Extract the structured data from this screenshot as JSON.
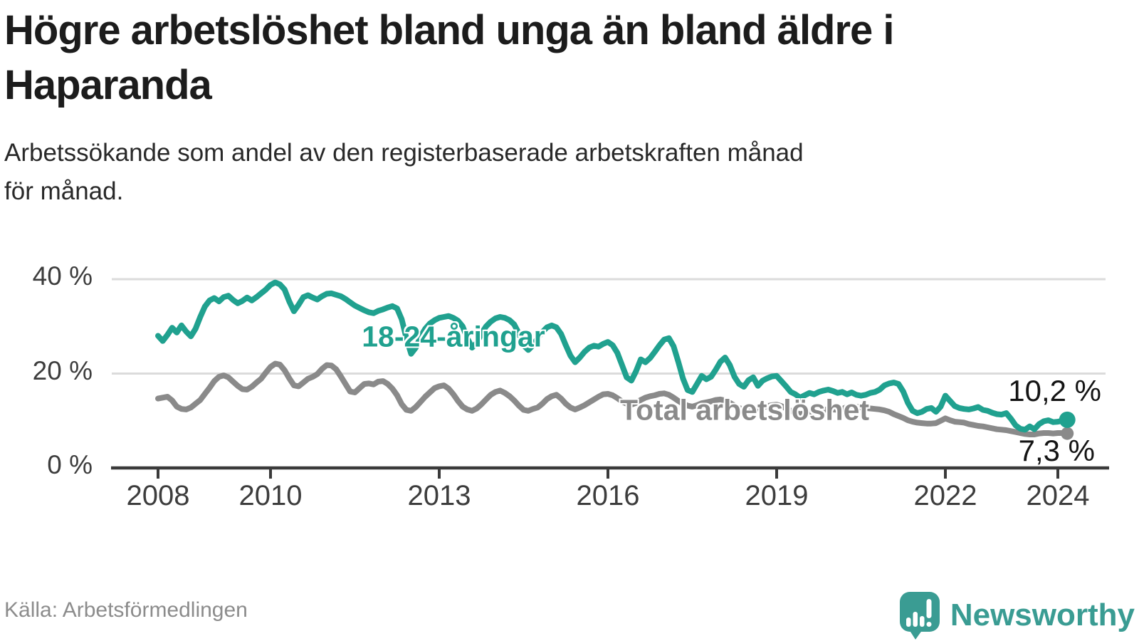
{
  "page": {
    "background": "#ffffff"
  },
  "header": {
    "title_lines": [
      "Högre arbetslöshet bland unga än bland äldre i",
      "Haparanda"
    ],
    "subtitle_lines": [
      "Arbetssökande som andel av den registerbaserade arbetskraften månad",
      "för månad."
    ]
  },
  "footer": {
    "source": "Källa: Arbetsförmedlingen",
    "brand_name": "Newsworthy",
    "brand_logo_icon": "speech-bubble-bar-chart-icon"
  },
  "colors": {
    "youth_series": "#20A18F",
    "total_series": "#8A8A8A",
    "grid": "#DBDBDB",
    "axis": "#3A3A3A",
    "tick_label": "#3D3D3D",
    "title_text": "#1C1C1C",
    "subtitle_text": "#292929",
    "end_label_text": "#141414",
    "source_text": "#8C8C8C",
    "brand_teal": "#3A9C93"
  },
  "chart_data": {
    "type": "line",
    "unit": "%",
    "x_start_year": 2008,
    "x_frequency": "monthly",
    "x_first_month": "2008-01",
    "x_last_month": "2024-03",
    "xlim": [
      2007.8,
      2024.9
    ],
    "ylim": [
      0,
      42
    ],
    "grid": "horizontal-only",
    "legend_position": "inline-labels",
    "x_ticks": [
      {
        "value": 2008,
        "label": "2008"
      },
      {
        "value": 2010,
        "label": "2010"
      },
      {
        "value": 2013,
        "label": "2013"
      },
      {
        "value": 2016,
        "label": "2016"
      },
      {
        "value": 2019,
        "label": "2019"
      },
      {
        "value": 2022,
        "label": "2022"
      },
      {
        "value": 2024,
        "label": "2024"
      }
    ],
    "y_ticks": [
      {
        "value": 0,
        "label": "0 %"
      },
      {
        "value": 20,
        "label": "20 %"
      },
      {
        "value": 40,
        "label": "40 %"
      }
    ],
    "series": [
      {
        "name": "total-arbetsloshet",
        "label": "Total arbetslöshet",
        "color": "#8A8A8A",
        "end_label": "7,3 %",
        "end_value": 7.3,
        "end_dot": true,
        "values": [
          14.7,
          14.9,
          15.1,
          14.3,
          13.0,
          12.5,
          12.4,
          12.8,
          13.6,
          14.4,
          15.7,
          17.0,
          18.4,
          19.3,
          19.6,
          19.2,
          18.3,
          17.4,
          16.7,
          16.6,
          17.2,
          18.1,
          18.9,
          20.2,
          21.4,
          22.1,
          21.9,
          20.7,
          19.0,
          17.5,
          17.3,
          18.1,
          18.9,
          19.3,
          19.9,
          21.0,
          21.8,
          21.7,
          20.9,
          19.4,
          17.8,
          16.2,
          16.0,
          16.9,
          17.8,
          17.9,
          17.7,
          18.3,
          18.4,
          17.8,
          16.8,
          15.4,
          13.5,
          12.3,
          12.1,
          12.9,
          14.0,
          15.1,
          16.0,
          16.9,
          17.3,
          17.5,
          16.8,
          15.6,
          14.2,
          13.0,
          12.4,
          12.1,
          12.6,
          13.5,
          14.5,
          15.5,
          16.1,
          16.4,
          15.9,
          15.2,
          14.3,
          13.2,
          12.3,
          12.1,
          12.5,
          12.8,
          13.6,
          14.6,
          15.2,
          15.5,
          14.7,
          13.6,
          12.8,
          12.4,
          12.8,
          13.3,
          13.9,
          14.5,
          15.1,
          15.6,
          15.7,
          15.4,
          14.8,
          14.1,
          13.6,
          13.4,
          13.8,
          14.4,
          14.9,
          15.2,
          15.4,
          15.7,
          15.8,
          15.5,
          14.9,
          14.2,
          13.6,
          13.2,
          13.0,
          13.3,
          13.7,
          13.9,
          14.1,
          14.4,
          14.5,
          14.3,
          13.8,
          13.2,
          12.7,
          12.4,
          12.5,
          12.8,
          12.6,
          12.9,
          13.1,
          13.3,
          13.4,
          13.1,
          12.6,
          12.1,
          11.7,
          11.4,
          11.6,
          11.9,
          12.0,
          12.2,
          12.3,
          12.4,
          12.4,
          12.3,
          12.5,
          12.9,
          13.2,
          13.0,
          12.8,
          12.7,
          12.6,
          12.5,
          12.4,
          12.2,
          11.9,
          11.4,
          11.0,
          10.6,
          10.1,
          9.8,
          9.6,
          9.5,
          9.4,
          9.4,
          9.5,
          10.0,
          10.5,
          10.1,
          9.8,
          9.7,
          9.6,
          9.3,
          9.1,
          8.9,
          8.8,
          8.6,
          8.4,
          8.2,
          8.1,
          8.0,
          7.8,
          7.6,
          7.4,
          7.2,
          7.1,
          7.1,
          7.3,
          7.4,
          7.4,
          7.3,
          7.4,
          7.4,
          7.3
        ]
      },
      {
        "name": "18-24-aringar",
        "label": "18-24-åringar",
        "color": "#20A18F",
        "end_label": "10,2 %",
        "end_value": 10.2,
        "end_dot": true,
        "values": [
          28.0,
          26.9,
          28.2,
          29.7,
          28.7,
          30.2,
          28.9,
          27.9,
          29.5,
          32.0,
          34.2,
          35.5,
          36.0,
          35.3,
          36.2,
          36.5,
          35.6,
          34.9,
          35.4,
          36.1,
          35.5,
          36.2,
          37.0,
          37.8,
          38.8,
          39.3,
          38.9,
          37.8,
          35.3,
          33.2,
          34.6,
          36.2,
          36.6,
          36.1,
          35.7,
          36.4,
          36.9,
          37.0,
          36.7,
          36.4,
          35.8,
          35.1,
          34.4,
          33.9,
          33.4,
          33.0,
          32.8,
          33.3,
          33.6,
          34.0,
          34.3,
          33.8,
          31.5,
          27.5,
          24.2,
          25.5,
          27.8,
          29.5,
          30.6,
          31.3,
          31.8,
          32.0,
          32.2,
          31.8,
          31.2,
          30.0,
          27.5,
          25.5,
          26.5,
          28.5,
          30.0,
          31.0,
          31.7,
          32.0,
          31.8,
          31.3,
          30.4,
          28.5,
          26.0,
          25.0,
          26.0,
          27.5,
          28.8,
          29.8,
          30.2,
          29.8,
          28.4,
          26.0,
          23.8,
          22.4,
          23.4,
          24.6,
          25.5,
          25.9,
          25.7,
          26.3,
          26.7,
          26.0,
          24.4,
          21.8,
          19.2,
          18.5,
          20.5,
          23.0,
          22.4,
          23.3,
          24.6,
          26.0,
          27.2,
          27.5,
          25.8,
          22.5,
          19.0,
          16.5,
          16.1,
          17.8,
          19.5,
          18.8,
          19.3,
          20.8,
          22.5,
          23.4,
          21.8,
          19.3,
          17.8,
          17.2,
          18.6,
          19.2,
          17.4,
          18.5,
          19.0,
          19.4,
          19.5,
          18.4,
          17.3,
          16.1,
          15.6,
          14.9,
          15.4,
          15.9,
          15.6,
          16.1,
          16.4,
          16.6,
          16.3,
          15.9,
          16.1,
          15.6,
          16.0,
          15.5,
          15.3,
          15.5,
          15.9,
          16.1,
          16.6,
          17.5,
          17.9,
          18.1,
          17.8,
          16.2,
          13.8,
          12.1,
          11.6,
          11.9,
          12.5,
          12.7,
          11.9,
          13.0,
          15.3,
          14.2,
          13.1,
          12.7,
          12.5,
          12.4,
          12.6,
          12.9,
          12.3,
          12.1,
          11.7,
          11.4,
          11.3,
          11.6,
          10.4,
          9.0,
          8.3,
          8.1,
          8.8,
          8.2,
          9.3,
          9.9,
          10.1,
          9.7,
          9.8,
          10.0,
          10.2
        ]
      }
    ]
  }
}
